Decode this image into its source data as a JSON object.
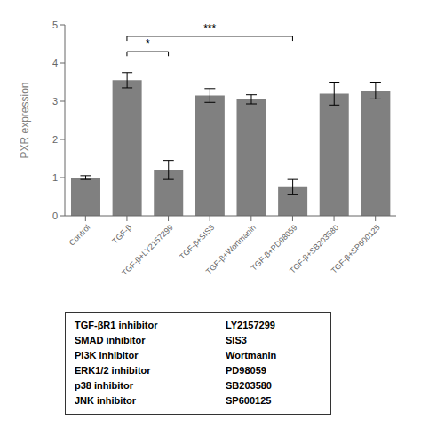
{
  "chart_data": {
    "type": "bar",
    "categories": [
      "Control",
      "TGF-β",
      "TGF-β+LY2157299",
      "TGF-β+SIS3",
      "TGF-β+Wortmanin",
      "TGF-β+PD98059",
      "TGF-β+SB203580",
      "TGF-β+SP600125"
    ],
    "values": [
      1.0,
      3.55,
      1.2,
      3.15,
      3.05,
      0.75,
      3.2,
      3.28
    ],
    "errors": [
      0.05,
      0.2,
      0.25,
      0.18,
      0.12,
      0.2,
      0.3,
      0.22
    ],
    "color": "#808080",
    "ylabel": "PXR expression",
    "ylim": [
      0,
      5
    ],
    "yticks": [
      0,
      1,
      2,
      3,
      4,
      5
    ],
    "grid": false,
    "annotations": [
      {
        "x1": "TGF-β",
        "x2": "TGF-β+LY2157299",
        "y": 4.3,
        "label": "*"
      },
      {
        "x1": "TGF-β",
        "x2": "TGF-β+PD98059",
        "y": 4.7,
        "label": "***"
      }
    ],
    "table": [
      [
        "TGF-βR1 inhibitor",
        "LY2157299"
      ],
      [
        "SMAD inhibitor",
        "SIS3"
      ],
      [
        "PI3K inhibitor",
        "Wortmanin"
      ],
      [
        "ERK1/2 inhibitor",
        "PD98059"
      ],
      [
        "p38 inhibitor",
        "SB203580"
      ],
      [
        "JNK inhibitor",
        "SP600125"
      ]
    ]
  }
}
